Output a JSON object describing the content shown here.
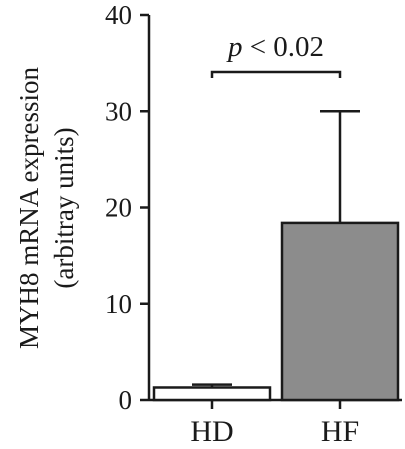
{
  "chart_data": {
    "type": "bar",
    "categories": [
      "HD",
      "HF"
    ],
    "values": [
      1.3,
      18.4
    ],
    "error_upper": [
      1.6,
      30.0
    ],
    "bar_colors": [
      "#ffffff",
      "#8c8c8c"
    ],
    "ylabel_line1": "MYH8 mRNA expression",
    "ylabel_line2": "(arbitray units)",
    "ylim": [
      0,
      40
    ],
    "yticks": [
      "0",
      "10",
      "20",
      "30",
      "40"
    ],
    "significance": {
      "p_symbol": "p",
      "text": " < 0.02"
    }
  }
}
